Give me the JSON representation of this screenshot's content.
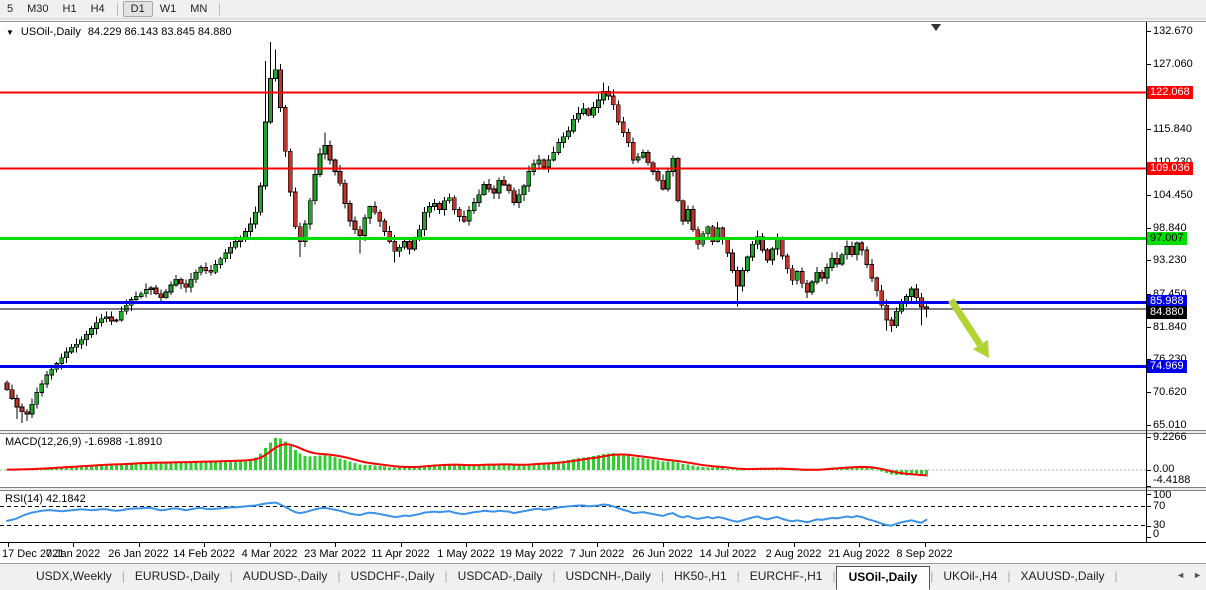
{
  "toolbar": {
    "buttons": [
      "5",
      "M30",
      "H1",
      "H4",
      "D1",
      "W1",
      "MN"
    ],
    "active": "D1",
    "group_breaks_after": [
      "H4",
      "MN"
    ]
  },
  "chart": {
    "title": {
      "collapse_icon": "▼",
      "symbol_period": "USOil-,Daily",
      "ohlc": "84.229 86.143 83.845 84.880"
    },
    "price_axis": {
      "ticks": [
        132.67,
        127.06,
        121.45,
        115.84,
        110.23,
        104.45,
        98.84,
        93.23,
        87.45,
        81.84,
        76.23,
        70.62,
        65.01
      ],
      "badges": [
        {
          "value": 122.068,
          "bg": "#FF0000",
          "fg": "#FFFFFF"
        },
        {
          "value": 109.036,
          "bg": "#FF0000",
          "fg": "#FFFFFF"
        },
        {
          "value": 97.007,
          "bg": "#00DD00",
          "fg": "#000000"
        },
        {
          "value": 85.988,
          "bg": "#0000E8",
          "fg": "#FFFFFF"
        },
        {
          "value": 84.88,
          "bg": "#000000",
          "fg": "#FFFFFF"
        },
        {
          "value": 74.969,
          "bg": "#0000E8",
          "fg": "#FFFFFF"
        }
      ]
    },
    "levels": [
      {
        "price": 122.068,
        "color": "#FF0000",
        "width": 2
      },
      {
        "price": 109.036,
        "color": "#FF0000",
        "width": 2
      },
      {
        "price": 97.007,
        "color": "#00DD00",
        "width": 3
      },
      {
        "price": 85.988,
        "color": "#0000E8",
        "width": 3
      },
      {
        "price": 84.88,
        "color": "#000000",
        "width": 1
      },
      {
        "price": 74.969,
        "color": "#0000E8",
        "width": 3
      }
    ],
    "candles": {
      "bull_color": "#22A32B",
      "bear_color": "#C0352A",
      "outline_color": "#000000",
      "first_open": 72.2,
      "closes": [
        71.0,
        69.5,
        68.0,
        67.2,
        66.8,
        68.5,
        70.5,
        72.0,
        73.5,
        74.5,
        75.5,
        76.5,
        77.5,
        78.3,
        78.8,
        79.6,
        80.5,
        81.5,
        82.5,
        83.2,
        83.5,
        82.8,
        83.0,
        84.5,
        85.5,
        86.5,
        87.0,
        87.5,
        88.2,
        88.5,
        87.5,
        86.8,
        87.8,
        89.0,
        90.0,
        89.2,
        88.6,
        90.0,
        91.2,
        92.0,
        91.5,
        91.2,
        92.5,
        93.5,
        94.5,
        95.5,
        96.5,
        97.2,
        98.2,
        99.5,
        101.5,
        106.0,
        117.0,
        124.5,
        126.0,
        119.5,
        112.0,
        105.0,
        99.0,
        96.5,
        99.5,
        103.5,
        108.0,
        111.5,
        113.0,
        110.5,
        108.5,
        106.5,
        103.0,
        100.0,
        98.5,
        97.5,
        100.5,
        102.5,
        101.5,
        100.0,
        98.2,
        96.5,
        94.8,
        95.5,
        96.5,
        95.2,
        96.8,
        98.5,
        101.5,
        102.5,
        103.0,
        102.0,
        103.5,
        104.0,
        102.0,
        100.8,
        100.0,
        101.8,
        103.2,
        104.5,
        106.3,
        105.5,
        104.8,
        107.0,
        106.2,
        105.2,
        103.2,
        104.5,
        106.0,
        108.5,
        109.8,
        110.5,
        109.3,
        110.5,
        111.8,
        113.5,
        114.5,
        115.5,
        117.5,
        118.5,
        119.3,
        118.2,
        119.5,
        120.8,
        122.3,
        121.5,
        120.0,
        117.0,
        115.2,
        113.5,
        110.5,
        111.0,
        111.8,
        110.0,
        108.5,
        107.0,
        105.5,
        108.5,
        110.8,
        103.5,
        100.0,
        102.0,
        98.5,
        96.0,
        97.8,
        99.0,
        96.5,
        98.8,
        96.8,
        94.5,
        91.5,
        88.8,
        91.5,
        93.8,
        96.0,
        97.3,
        95.0,
        93.3,
        95.2,
        96.8,
        94.0,
        91.8,
        89.8,
        91.3,
        89.3,
        87.8,
        89.5,
        91.2,
        90.2,
        92.0,
        93.6,
        92.6,
        94.2,
        95.6,
        94.2,
        96.2,
        95.0,
        92.5,
        90.2,
        88.0,
        85.5,
        83.0,
        82.0,
        84.5,
        86.2,
        87.0,
        88.3,
        86.8,
        85.2,
        84.88
      ],
      "wick_high": {
        "52": 127.5,
        "53": 130.8,
        "54": 129.5,
        "64": 115.2,
        "120": 123.8,
        "121": 123.2
      },
      "wick_low": {
        "2": 66.0,
        "3": 65.3,
        "4": 65.6,
        "59": 93.8,
        "71": 94.4,
        "78": 92.9,
        "147": 85.3,
        "177": 81.2,
        "178": 80.9,
        "184": 82.0,
        "185": 83.4
      }
    },
    "annotations": {
      "arrow": {
        "direction": "down-right",
        "color": "#B2D235"
      },
      "shift_marker_color": "#333333"
    }
  },
  "macd_panel": {
    "label": "MACD(12,26,9) -1.6988 -1.8910",
    "axis_labels": [
      "9.2266",
      "0.00",
      "-4.4188"
    ],
    "histogram_color": "#32CD32",
    "signal_color": "#FF0000",
    "values": [
      0.15,
      0.2,
      0.3,
      0.35,
      0.3,
      0.4,
      0.5,
      0.6,
      0.7,
      0.8,
      0.9,
      1.0,
      1.1,
      1.15,
      1.2,
      1.3,
      1.4,
      1.5,
      1.6,
      1.65,
      1.7,
      1.75,
      1.7,
      1.8,
      1.9,
      2.0,
      2.1,
      2.15,
      2.2,
      2.25,
      2.2,
      2.1,
      2.15,
      2.25,
      2.35,
      2.3,
      2.25,
      2.35,
      2.45,
      2.5,
      2.5,
      2.45,
      2.5,
      2.6,
      2.65,
      2.7,
      2.75,
      2.8,
      2.9,
      3.1,
      3.6,
      4.6,
      6.2,
      7.8,
      9.0,
      8.8,
      8.0,
      6.8,
      5.6,
      4.6,
      4.0,
      3.8,
      3.9,
      4.1,
      4.2,
      4.0,
      3.7,
      3.3,
      2.9,
      2.4,
      2.0,
      1.6,
      1.4,
      1.4,
      1.3,
      1.2,
      1.0,
      0.8,
      0.7,
      0.7,
      0.8,
      0.8,
      0.9,
      1.1,
      1.3,
      1.5,
      1.6,
      1.6,
      1.7,
      1.7,
      1.6,
      1.4,
      1.3,
      1.3,
      1.4,
      1.5,
      1.7,
      1.7,
      1.6,
      1.7,
      1.7,
      1.6,
      1.4,
      1.4,
      1.5,
      1.7,
      1.9,
      2.0,
      2.0,
      2.1,
      2.2,
      2.4,
      2.6,
      2.8,
      3.1,
      3.4,
      3.6,
      3.7,
      3.9,
      4.2,
      4.5,
      4.7,
      4.8,
      4.6,
      4.4,
      4.1,
      3.7,
      3.5,
      3.4,
      3.2,
      3.0,
      2.7,
      2.5,
      2.4,
      2.4,
      2.1,
      1.8,
      1.6,
      1.3,
      1.0,
      0.9,
      0.8,
      0.7,
      0.7,
      0.6,
      0.4,
      0.2,
      0.1,
      0.1,
      0.2,
      0.4,
      0.5,
      0.5,
      0.4,
      0.4,
      0.5,
      0.4,
      0.2,
      0.1,
      0.1,
      0.0,
      0.0,
      0.1,
      0.2,
      0.4,
      0.5,
      0.7,
      0.8,
      0.9,
      1.0,
      1.0,
      1.1,
      1.0,
      0.8,
      0.5,
      0.1,
      -0.3,
      -0.8,
      -1.2,
      -1.3,
      -1.4,
      -1.5,
      -1.4,
      -1.5,
      -1.6,
      -1.7
    ]
  },
  "rsi_panel": {
    "label": "RSI(14) 42.1842",
    "axis_labels": [
      "100",
      "70",
      "30",
      "0"
    ],
    "guide_levels": [
      70,
      30
    ],
    "line_color": "#3A93E8",
    "values": [
      40,
      42,
      45,
      50,
      54,
      57,
      59,
      61,
      62,
      62,
      61,
      60,
      61,
      62,
      63,
      64,
      63,
      62,
      63,
      64,
      64,
      62,
      61,
      62,
      64,
      65,
      66,
      66,
      67,
      67,
      64,
      62,
      63,
      65,
      66,
      64,
      62,
      64,
      66,
      67,
      65,
      64,
      65,
      66,
      67,
      68,
      68,
      69,
      70,
      71,
      72,
      74,
      76,
      77,
      78,
      74,
      69,
      63,
      58,
      56,
      58,
      61,
      64,
      66,
      67,
      65,
      63,
      61,
      58,
      55,
      53,
      52,
      55,
      57,
      56,
      54,
      52,
      50,
      48,
      49,
      51,
      50,
      52,
      54,
      57,
      58,
      59,
      58,
      59,
      60,
      57,
      55,
      54,
      56,
      58,
      59,
      61,
      60,
      59,
      61,
      60,
      59,
      56,
      58,
      60,
      62,
      64,
      65,
      63,
      64,
      66,
      68,
      69,
      70,
      71,
      72,
      72,
      70,
      71,
      72,
      74,
      73,
      70,
      66,
      63,
      60,
      56,
      57,
      58,
      56,
      54,
      52,
      50,
      54,
      56,
      50,
      47,
      50,
      46,
      44,
      46,
      48,
      45,
      48,
      46,
      43,
      40,
      38,
      41,
      44,
      47,
      49,
      45,
      43,
      46,
      48,
      44,
      41,
      39,
      41,
      39,
      37,
      40,
      43,
      42,
      44,
      46,
      45,
      47,
      49,
      47,
      50,
      48,
      44,
      41,
      38,
      34,
      31,
      30,
      34,
      37,
      39,
      41,
      38,
      36,
      42.18
    ]
  },
  "time_axis": {
    "labels": [
      "17 Dec 2021",
      "7 Jan 2022",
      "26 Jan 2022",
      "14 Feb 2022",
      "4 Mar 2022",
      "23 Mar 2022",
      "11 Apr 2022",
      "1 May 2022",
      "19 May 2022",
      "7 Jun 2022",
      "26 Jun 2022",
      "14 Jul 2022",
      "2 Aug 2022",
      "21 Aug 2022",
      "8 Sep 2022"
    ]
  },
  "tab_bar": {
    "tabs": [
      "USDX,Weekly",
      "EURUSD-,Daily",
      "AUDUSD-,Daily",
      "USDCHF-,Daily",
      "USDCAD-,Daily",
      "USDCNH-,Daily",
      "HK50-,H1",
      "EURCHF-,H1",
      "USOil-,Daily",
      "UKOil-,H4",
      "XAUUSD-,Daily"
    ],
    "active": "USOil-,Daily",
    "scroll_left": "◄",
    "scroll_right": "►"
  }
}
